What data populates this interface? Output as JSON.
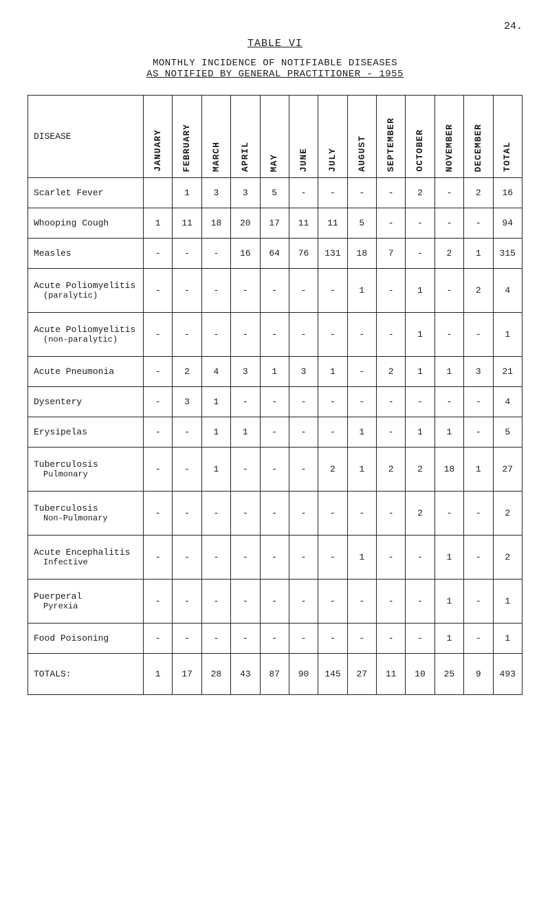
{
  "page_number": "24.",
  "table_label": "TABLE VI",
  "title_line1": "MONTHLY INCIDENCE OF NOTIFIABLE DISEASES",
  "title_line2": "AS NOTIFIED BY GENERAL PRACTITIONER - 1955",
  "columns": {
    "disease": "DISEASE",
    "months": [
      "JANUARY",
      "FEBRUARY",
      "MARCH",
      "APRIL",
      "MAY",
      "JUNE",
      "JULY",
      "AUGUST",
      "SEPTEMBER",
      "OCTOBER",
      "NOVEMBER",
      "DECEMBER",
      "TOTAL"
    ]
  },
  "rows": [
    {
      "name": "Scarlet Fever",
      "cells": [
        "",
        "1",
        "3",
        "3",
        "5",
        "-",
        "-",
        "-",
        "-",
        "2",
        "-",
        "2",
        "16"
      ]
    },
    {
      "name": "Whooping Cough",
      "cells": [
        "1",
        "11",
        "18",
        "20",
        "17",
        "11",
        "11",
        "5",
        "-",
        "-",
        "-",
        "-",
        "94"
      ]
    },
    {
      "name": "Measles",
      "cells": [
        "-",
        "-",
        "-",
        "16",
        "64",
        "76",
        "131",
        "18",
        "7",
        "-",
        "2",
        "1",
        "315"
      ]
    },
    {
      "name": "Acute Poliomyelitis",
      "sub": "(paralytic)",
      "cells": [
        "-",
        "-",
        "-",
        "-",
        "-",
        "-",
        "-",
        "1",
        "-",
        "1",
        "-",
        "2",
        "4"
      ]
    },
    {
      "name": "Acute Poliomyelitis",
      "sub": "(non-paralytic)",
      "cells": [
        "-",
        "-",
        "-",
        "-",
        "-",
        "-",
        "-",
        "-",
        "-",
        "1",
        "-",
        "-",
        "1"
      ]
    },
    {
      "name": "Acute Pneumonia",
      "cells": [
        "-",
        "2",
        "4",
        "3",
        "1",
        "3",
        "1",
        "-",
        "2",
        "1",
        "1",
        "3",
        "21"
      ]
    },
    {
      "name": "Dysentery",
      "cells": [
        "-",
        "3",
        "1",
        "-",
        "-",
        "-",
        "-",
        "-",
        "-",
        "-",
        "-",
        "-",
        "4"
      ]
    },
    {
      "name": "Erysipelas",
      "cells": [
        "-",
        "-",
        "1",
        "1",
        "-",
        "-",
        "-",
        "1",
        "-",
        "1",
        "1",
        "-",
        "5"
      ]
    },
    {
      "name": "Tuberculosis",
      "sub": "Pulmonary",
      "cells": [
        "-",
        "-",
        "1",
        "-",
        "-",
        "-",
        "2",
        "1",
        "2",
        "2",
        "18",
        "1",
        "27"
      ]
    },
    {
      "name": "Tuberculosis",
      "sub": "Non-Pulmonary",
      "cells": [
        "-",
        "-",
        "-",
        "-",
        "-",
        "-",
        "-",
        "-",
        "-",
        "2",
        "-",
        "-",
        "2"
      ]
    },
    {
      "name": "Acute Encephalitis",
      "sub": "Infective",
      "cells": [
        "-",
        "-",
        "-",
        "-",
        "-",
        "-",
        "-",
        "1",
        "-",
        "-",
        "1",
        "-",
        "2"
      ]
    },
    {
      "name": "Puerperal",
      "sub": "Pyrexia",
      "cells": [
        "-",
        "-",
        "-",
        "-",
        "-",
        "-",
        "-",
        "-",
        "-",
        "-",
        "1",
        "-",
        "1"
      ]
    },
    {
      "name": "Food Poisoning",
      "cells": [
        "-",
        "-",
        "-",
        "-",
        "-",
        "-",
        "-",
        "-",
        "-",
        "-",
        "1",
        "-",
        "1"
      ]
    }
  ],
  "totals": {
    "label": "TOTALS:",
    "cells": [
      "1",
      "17",
      "28",
      "43",
      "87",
      "90",
      "145",
      "27",
      "11",
      "10",
      "25",
      "9",
      "493"
    ]
  }
}
